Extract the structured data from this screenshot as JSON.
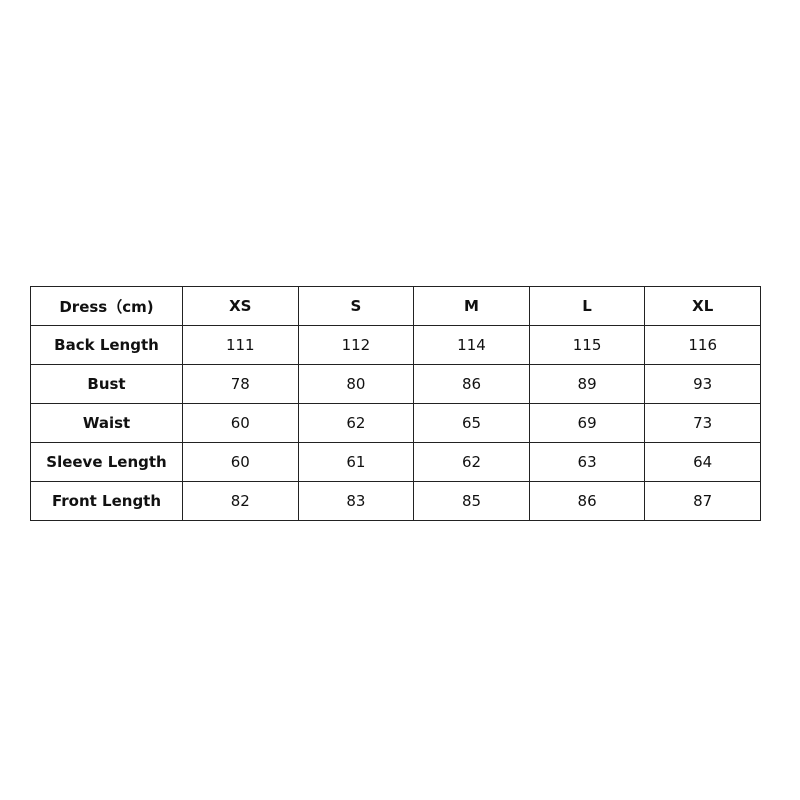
{
  "table": {
    "header": [
      "Dress（cm)",
      "XS",
      "S",
      "M",
      "L",
      "XL"
    ],
    "rows": [
      {
        "label": "Back Length",
        "values": [
          "111",
          "112",
          "114",
          "115",
          "116"
        ]
      },
      {
        "label": "Bust",
        "values": [
          "78",
          "80",
          "86",
          "89",
          "93"
        ]
      },
      {
        "label": "Waist",
        "values": [
          "60",
          "62",
          "65",
          "69",
          "73"
        ]
      },
      {
        "label": "Sleeve Length",
        "values": [
          "60",
          "61",
          "62",
          "63",
          "64"
        ]
      },
      {
        "label": "Front Length",
        "values": [
          "82",
          "83",
          "85",
          "86",
          "87"
        ]
      }
    ]
  }
}
